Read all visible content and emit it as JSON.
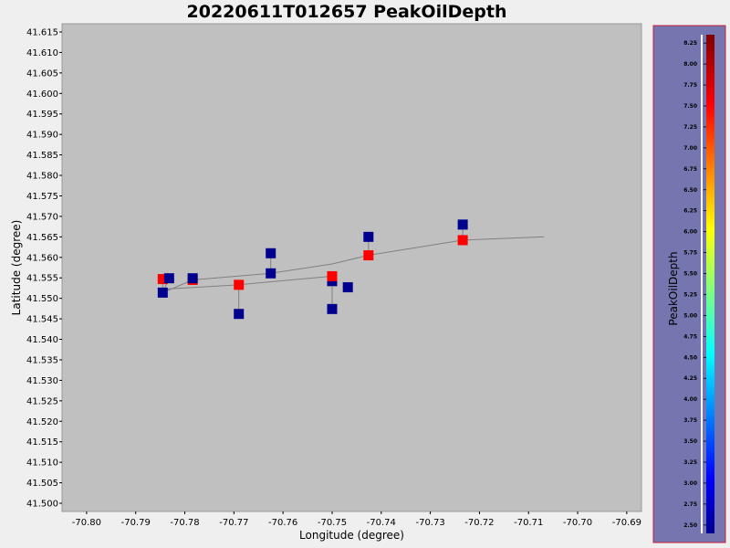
{
  "chart_data": {
    "type": "scatter",
    "title": "20220611T012657 PeakOilDepth",
    "xlabel": "Longitude (degree)",
    "ylabel": "Latitude (degree)",
    "xlim": [
      -70.805,
      -70.687
    ],
    "ylim": [
      41.498,
      41.617
    ],
    "x_ticks": [
      "-70.80",
      "-70.79",
      "-70.78",
      "-70.77",
      "-70.76",
      "-70.75",
      "-70.74",
      "-70.73",
      "-70.72",
      "-70.71",
      "-70.70",
      "-70.69"
    ],
    "x_tick_values": [
      -70.8,
      -70.79,
      -70.78,
      -70.77,
      -70.76,
      -70.75,
      -70.74,
      -70.73,
      -70.72,
      -70.71,
      -70.7,
      -70.69
    ],
    "y_ticks": [
      "41.500",
      "41.505",
      "41.510",
      "41.515",
      "41.520",
      "41.525",
      "41.530",
      "41.535",
      "41.540",
      "41.545",
      "41.550",
      "41.555",
      "41.560",
      "41.565",
      "41.570",
      "41.575",
      "41.580",
      "41.585",
      "41.590",
      "41.595",
      "41.600",
      "41.605",
      "41.610",
      "41.615"
    ],
    "y_tick_values": [
      41.5,
      41.505,
      41.51,
      41.515,
      41.52,
      41.525,
      41.53,
      41.535,
      41.54,
      41.545,
      41.55,
      41.555,
      41.56,
      41.565,
      41.57,
      41.575,
      41.58,
      41.585,
      41.59,
      41.595,
      41.6,
      41.605,
      41.61,
      41.615
    ],
    "track": [
      [
        -70.7068,
        41.565
      ],
      [
        -70.7234,
        41.5642
      ],
      [
        -70.7426,
        41.5605
      ],
      [
        -70.75,
        41.5584
      ],
      [
        -70.7625,
        41.5561
      ],
      [
        -70.7784,
        41.5545
      ],
      [
        -70.7845,
        41.5514
      ],
      [
        -70.7832,
        41.5523
      ],
      [
        -70.769,
        41.5533
      ],
      [
        -70.75,
        41.5554
      ]
    ],
    "connectors": [
      [
        [
          -70.7234,
          41.568
        ],
        [
          -70.7234,
          41.5642
        ]
      ],
      [
        [
          -70.7426,
          41.565
        ],
        [
          -70.7426,
          41.5605
        ]
      ],
      [
        [
          -70.7625,
          41.561
        ],
        [
          -70.7625,
          41.5561
        ]
      ],
      [
        [
          -70.75,
          41.5542
        ],
        [
          -70.75,
          41.5474
        ]
      ],
      [
        [
          -70.769,
          41.5533
        ],
        [
          -70.769,
          41.5462
        ]
      ],
      [
        [
          -70.7845,
          41.5547
        ],
        [
          -70.7845,
          41.5514
        ]
      ],
      [
        [
          -70.7832,
          41.5549
        ],
        [
          -70.7845,
          41.5514
        ]
      ]
    ],
    "points": [
      {
        "x": -70.7234,
        "y": 41.568,
        "value": 2.4
      },
      {
        "x": -70.7426,
        "y": 41.565,
        "value": 2.4
      },
      {
        "x": -70.7625,
        "y": 41.561,
        "value": 2.4
      },
      {
        "x": -70.7625,
        "y": 41.5561,
        "value": 2.4
      },
      {
        "x": -70.75,
        "y": 41.5542,
        "value": 2.4
      },
      {
        "x": -70.7468,
        "y": 41.5527,
        "value": 2.4
      },
      {
        "x": -70.75,
        "y": 41.5474,
        "value": 2.4
      },
      {
        "x": -70.769,
        "y": 41.5462,
        "value": 2.4
      },
      {
        "x": -70.7845,
        "y": 41.5547,
        "value": 7.7
      },
      {
        "x": -70.7784,
        "y": 41.5545,
        "value": 7.7
      },
      {
        "x": -70.7784,
        "y": 41.5549,
        "value": 2.4
      },
      {
        "x": -70.7832,
        "y": 41.5549,
        "value": 2.4
      },
      {
        "x": -70.7845,
        "y": 41.5514,
        "value": 2.4
      },
      {
        "x": -70.769,
        "y": 41.5533,
        "value": 7.7
      },
      {
        "x": -70.75,
        "y": 41.5554,
        "value": 7.7
      },
      {
        "x": -70.7426,
        "y": 41.5605,
        "value": 7.7
      },
      {
        "x": -70.7234,
        "y": 41.5642,
        "value": 7.7
      }
    ],
    "colorbar": {
      "label": "PeakOilDepth",
      "range": [
        2.4,
        8.35
      ],
      "ticks": [
        "2.50",
        "2.75",
        "3.00",
        "3.25",
        "3.50",
        "3.75",
        "4.00",
        "4.25",
        "4.50",
        "4.75",
        "5.00",
        "5.25",
        "5.50",
        "5.75",
        "6.00",
        "6.25",
        "6.50",
        "6.75",
        "7.00",
        "7.25",
        "7.50",
        "7.75",
        "8.00",
        "8.25"
      ],
      "tick_values": [
        2.5,
        2.75,
        3.0,
        3.25,
        3.5,
        3.75,
        4.0,
        4.25,
        4.5,
        4.75,
        5.0,
        5.25,
        5.5,
        5.75,
        6.0,
        6.25,
        6.5,
        6.75,
        7.0,
        7.25,
        7.5,
        7.75,
        8.0,
        8.25
      ]
    },
    "colors": {
      "plot_bg": "#c0c0c0",
      "page_bg": "#efefef",
      "colorbar_bg": "#7575b0",
      "colorbar_border": "#c81e3c",
      "track": "#808080",
      "low": "#00008f",
      "high": "#ff0000"
    },
    "grid": false
  }
}
